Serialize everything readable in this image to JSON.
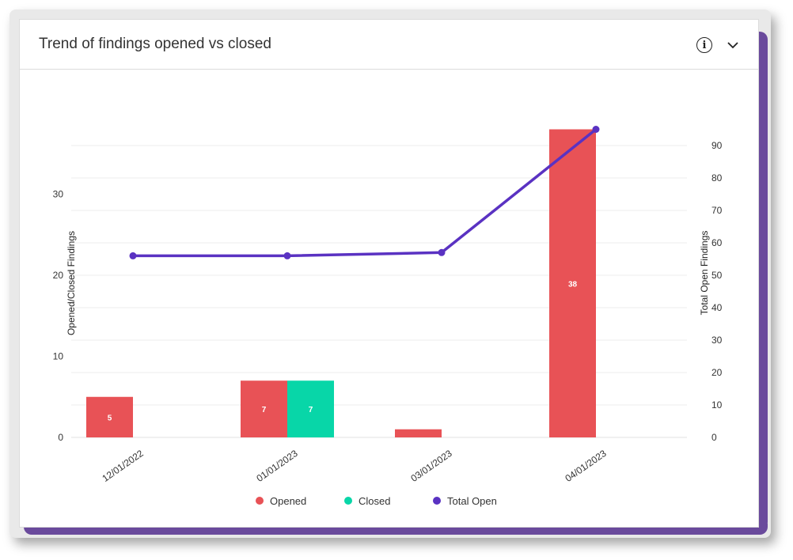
{
  "card": {
    "title": "Trend of findings opened vs closed",
    "info_icon": "info-icon",
    "collapse_icon": "chevron-down-icon"
  },
  "chart_data": {
    "type": "bar",
    "categories": [
      "12/01/2022",
      "01/01/2023",
      "03/01/2023",
      "04/01/2023"
    ],
    "series": [
      {
        "name": "Opened",
        "type": "bar",
        "axis": "left",
        "color": "#e85256",
        "values": [
          5,
          7,
          1,
          38
        ],
        "labels": [
          "5",
          "7",
          "",
          "38"
        ]
      },
      {
        "name": "Closed",
        "type": "bar",
        "axis": "left",
        "color": "#08d6a8",
        "values": [
          0,
          7,
          0,
          0
        ],
        "labels": [
          "",
          "7",
          "",
          ""
        ]
      },
      {
        "name": "Total Open",
        "type": "line",
        "axis": "right",
        "color": "#5a32c2",
        "values": [
          56,
          56,
          57,
          95
        ]
      }
    ],
    "y_left": {
      "label": "Opened/Closed Findings",
      "ticks": [
        0,
        10,
        20,
        30
      ],
      "range": [
        0,
        38
      ]
    },
    "y_right": {
      "label": "Total Open Findings",
      "ticks": [
        0,
        10,
        20,
        30,
        40,
        50,
        60,
        70,
        80,
        90
      ],
      "range": [
        0,
        95
      ]
    },
    "legend": [
      "Opened",
      "Closed",
      "Total Open"
    ],
    "legend_position": "bottom",
    "grid": true
  }
}
